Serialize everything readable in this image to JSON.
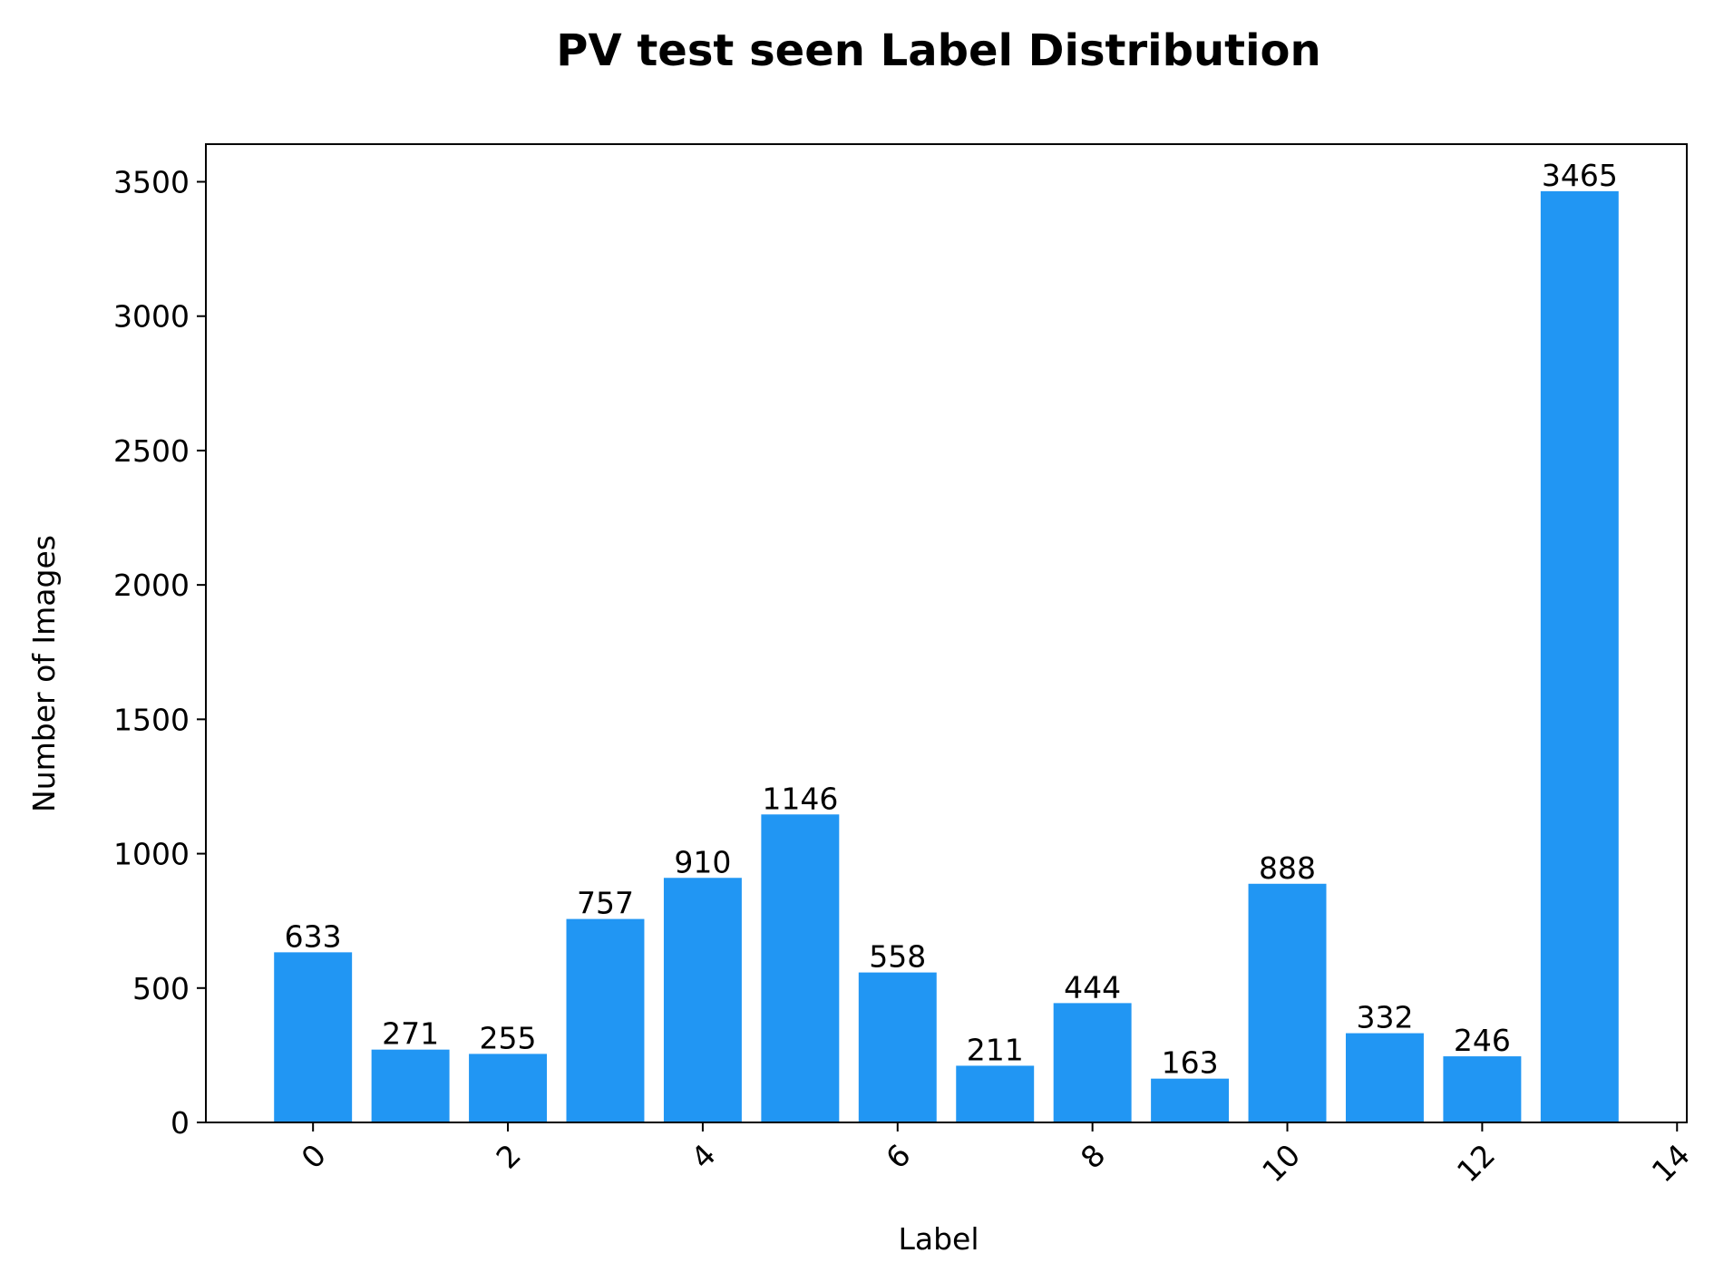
{
  "chart_data": {
    "type": "bar",
    "title": "PV test seen Label Distribution",
    "xlabel": "Label",
    "ylabel": "Number of Images",
    "categories": [
      0,
      1,
      2,
      3,
      4,
      5,
      6,
      7,
      8,
      9,
      10,
      11,
      12,
      13
    ],
    "values": [
      633,
      271,
      255,
      757,
      910,
      1146,
      558,
      211,
      444,
      163,
      888,
      332,
      246,
      3465
    ],
    "xlim": [
      -1.1,
      14.1
    ],
    "ylim": [
      0,
      3640
    ],
    "xticks": [
      0,
      2,
      4,
      6,
      8,
      10,
      12,
      14
    ],
    "yticks": [
      0,
      500,
      1000,
      1500,
      2000,
      2500,
      3000,
      3500
    ],
    "xtick_rotation": 45,
    "bar_color": "#2196F3",
    "grid": false,
    "legend": "none",
    "data_labels": true
  }
}
